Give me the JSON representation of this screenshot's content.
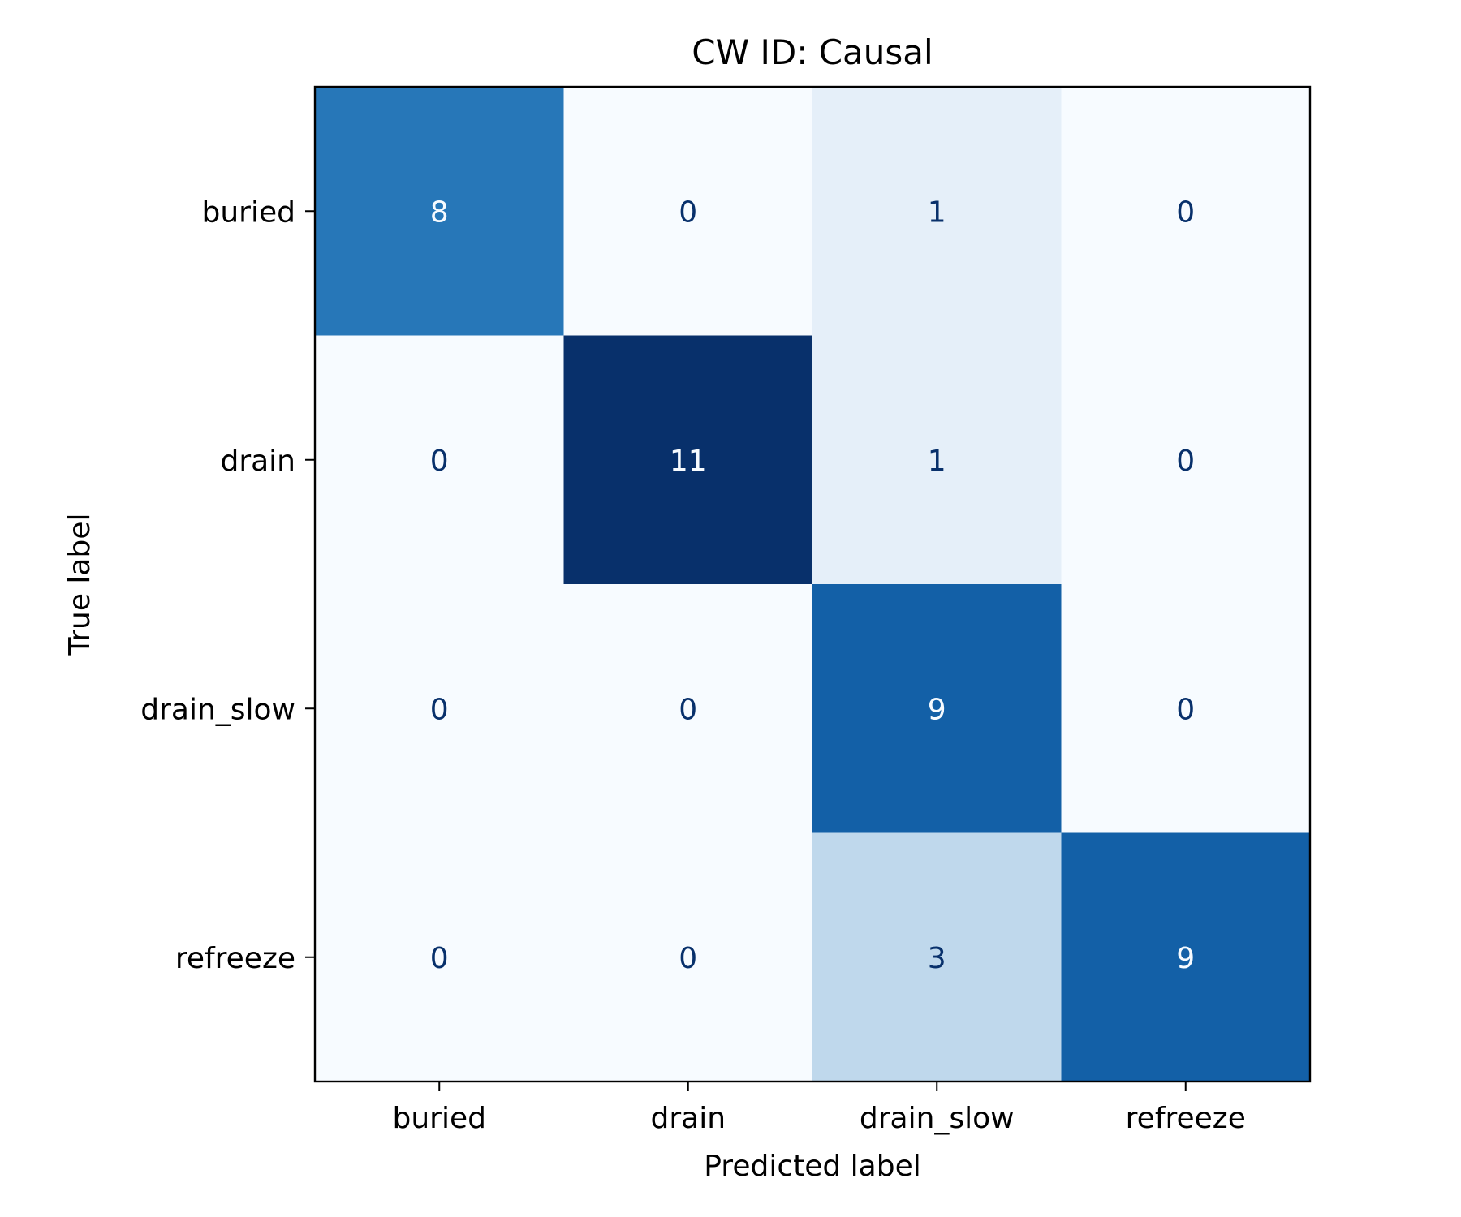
{
  "chart_data": {
    "type": "heatmap",
    "title": "CW ID: Causal",
    "xlabel": "Predicted label",
    "ylabel": "True label",
    "x_categories": [
      "buried",
      "drain",
      "drain_slow",
      "refreeze"
    ],
    "y_categories": [
      "buried",
      "drain",
      "drain_slow",
      "refreeze"
    ],
    "matrix": [
      [
        8,
        0,
        1,
        0
      ],
      [
        0,
        11,
        1,
        0
      ],
      [
        0,
        0,
        9,
        0
      ],
      [
        0,
        0,
        3,
        9
      ]
    ],
    "colormap": "Blues",
    "value_range": [
      0,
      11
    ],
    "colorbar": false,
    "grid": false
  }
}
